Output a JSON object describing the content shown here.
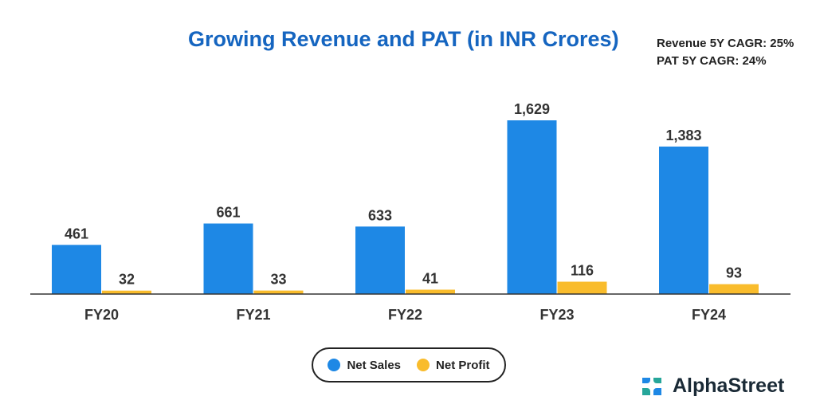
{
  "title": "Growing Revenue and PAT (in INR Crores)",
  "cagr": {
    "revenue": "Revenue 5Y CAGR: 25%",
    "pat": "PAT 5Y CAGR: 24%"
  },
  "legend": {
    "net_sales": "Net Sales",
    "net_profit": "Net Profit"
  },
  "brand": {
    "name": "AlphaStreet"
  },
  "colors": {
    "net_sales": "#1e88e5",
    "net_profit": "#f9bc2c",
    "title": "#1565c0"
  },
  "chart_data": {
    "type": "bar",
    "title": "Growing Revenue and PAT (in INR Crores)",
    "categories": [
      "FY20",
      "FY21",
      "FY22",
      "FY23",
      "FY24"
    ],
    "series": [
      {
        "name": "Net Sales",
        "values": [
          461,
          661,
          633,
          1629,
          1383
        ],
        "labels": [
          "461",
          "661",
          "633",
          "1,629",
          "1,383"
        ]
      },
      {
        "name": "Net Profit",
        "values": [
          32,
          33,
          41,
          116,
          93
        ],
        "labels": [
          "32",
          "33",
          "41",
          "116",
          "93"
        ]
      }
    ],
    "xlabel": "",
    "ylabel": "",
    "ylim": [
      0,
      1629
    ],
    "legend_position": "bottom-center",
    "grid": false
  }
}
